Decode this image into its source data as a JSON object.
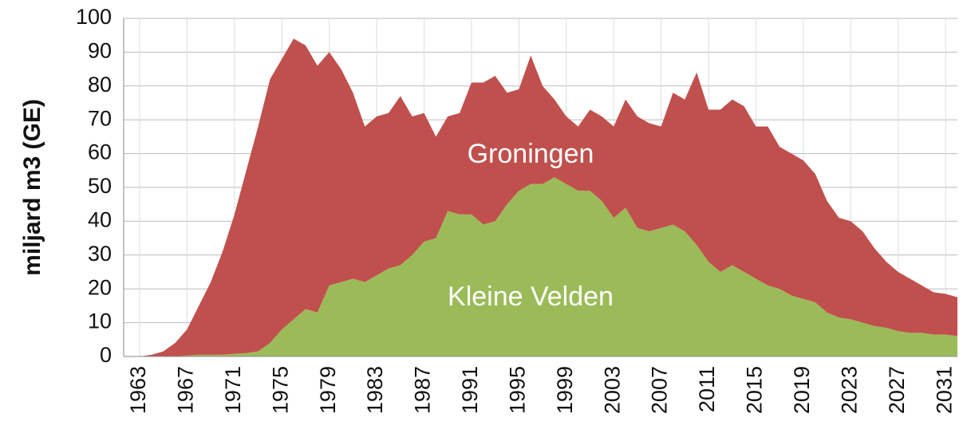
{
  "chart_data": {
    "type": "stacked-area",
    "y_label": "miljard m3 (GE)",
    "x": [
      1963,
      1964,
      1965,
      1966,
      1967,
      1968,
      1969,
      1970,
      1971,
      1972,
      1973,
      1974,
      1975,
      1976,
      1977,
      1978,
      1979,
      1980,
      1981,
      1982,
      1983,
      1984,
      1985,
      1986,
      1987,
      1988,
      1989,
      1990,
      1991,
      1992,
      1993,
      1994,
      1995,
      1996,
      1997,
      1998,
      1999,
      2000,
      2001,
      2002,
      2003,
      2004,
      2005,
      2006,
      2007,
      2008,
      2009,
      2010,
      2011,
      2012,
      2013,
      2014,
      2015,
      2016,
      2017,
      2018,
      2019,
      2020,
      2021,
      2022,
      2023,
      2024,
      2025,
      2026,
      2027,
      2028,
      2029,
      2030,
      2031,
      2032
    ],
    "series": [
      {
        "name": "Kleine Velden",
        "color": "#9bbb59",
        "values": [
          0,
          0,
          0,
          0,
          0.3,
          0.5,
          0.5,
          0.5,
          0.8,
          1,
          1.5,
          4,
          8,
          11,
          14,
          13,
          21,
          22,
          23,
          22,
          24,
          26,
          27,
          30,
          34,
          35,
          43,
          42,
          42,
          39,
          40,
          45,
          49,
          51,
          51,
          53,
          51,
          49,
          49,
          46,
          41,
          44,
          38,
          37,
          38,
          39,
          37,
          33,
          28,
          25,
          27,
          25,
          23,
          21,
          20,
          18,
          17,
          16,
          13,
          11.5,
          11,
          10,
          9,
          8.5,
          7.5,
          7,
          7,
          6.5,
          6.5,
          6
        ]
      },
      {
        "name": "Groningen",
        "color": "#c0504d",
        "values": [
          0,
          0.5,
          1.5,
          4,
          7.7,
          14.5,
          21.5,
          30.5,
          41.2,
          54,
          66.5,
          78,
          80,
          83,
          78,
          73,
          69,
          63,
          55,
          46,
          47,
          46,
          50,
          41,
          38,
          30,
          28,
          30,
          39,
          42,
          43,
          33,
          30,
          38,
          29,
          23,
          20,
          19,
          24,
          25,
          27,
          32,
          33,
          32,
          30,
          39,
          39,
          51,
          45,
          48,
          49,
          49,
          45,
          47,
          42,
          42,
          41,
          38,
          33,
          29.5,
          29,
          27,
          23,
          19.5,
          17.5,
          16,
          14,
          12.5,
          12,
          11.5
        ]
      }
    ],
    "xlim": [
      1963,
      2032
    ],
    "xticks": [
      1963,
      1967,
      1971,
      1975,
      1979,
      1983,
      1987,
      1991,
      1995,
      1999,
      2003,
      2007,
      2011,
      2015,
      2019,
      2023,
      2027,
      2031
    ],
    "ylim": [
      0,
      100
    ],
    "yticks": [
      0,
      10,
      20,
      30,
      40,
      50,
      60,
      70,
      80,
      90,
      100
    ],
    "grid": true
  }
}
